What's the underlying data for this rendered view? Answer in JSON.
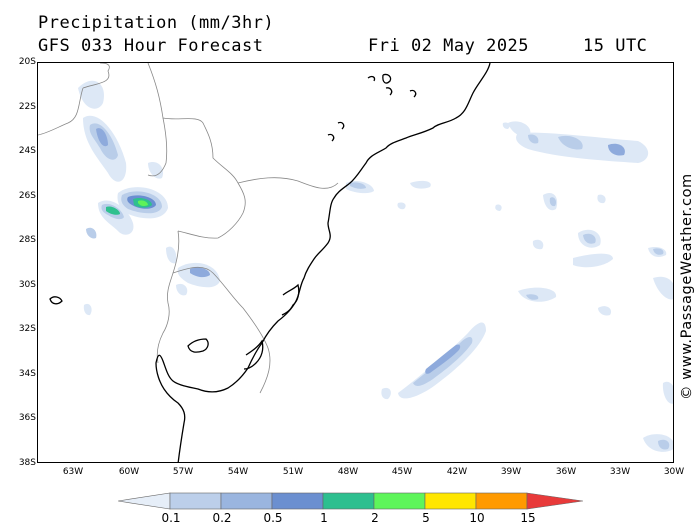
{
  "header": {
    "title": "Precipitation (mm/3hr)",
    "model": "GFS 033 Hour Forecast",
    "date": "Fri 02 May 2025",
    "time": "15 UTC"
  },
  "watermark": "© www.PassageWeather.com",
  "axes": {
    "latitude_labels": [
      "20S",
      "22S",
      "24S",
      "26S",
      "28S",
      "30S",
      "32S",
      "34S",
      "36S",
      "38S"
    ],
    "longitude_labels": [
      "63W",
      "60W",
      "57W",
      "54W",
      "51W",
      "48W",
      "45W",
      "42W",
      "39W",
      "36W",
      "33W",
      "30W"
    ]
  },
  "legend": {
    "labels": [
      "0.1",
      "0.2",
      "0.5",
      "1",
      "2",
      "5",
      "10",
      "15"
    ],
    "colors": [
      "#e6eef8",
      "#bccfea",
      "#9ab5df",
      "#6b8fd0",
      "#2dbf8f",
      "#5ef55a",
      "#ffe600",
      "#ff9a00",
      "#e83a3a"
    ]
  },
  "precip_colors": {
    "light": "#dde8f6",
    "low": "#b9cde9",
    "mid": "#8eaadc",
    "high": "#6a8ed1",
    "heavy": "#2ec08e",
    "very_heavy": "#5ef25a"
  }
}
